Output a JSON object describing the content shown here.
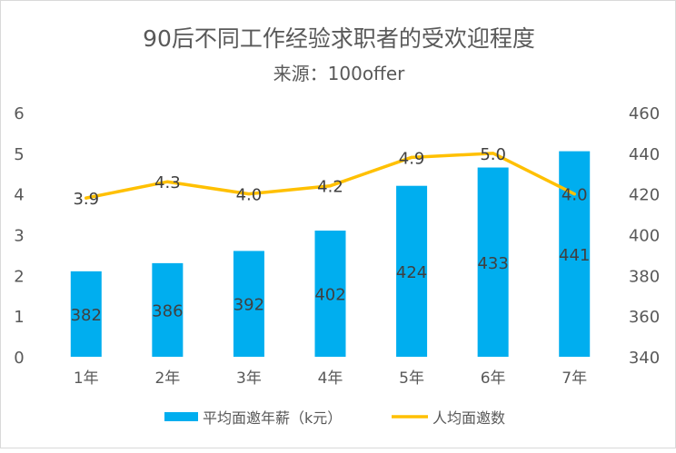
{
  "chart_data": {
    "type": "bar+line",
    "title": "90后不同工作经验求职者的受欢迎程度",
    "subtitle": "来源：100offer",
    "categories": [
      "1年",
      "2年",
      "3年",
      "4年",
      "5年",
      "6年",
      "7年"
    ],
    "series": [
      {
        "name": "平均面邀年薪（k元）",
        "type": "bar",
        "axis": "right",
        "values": [
          382,
          386,
          392,
          402,
          424,
          433,
          441
        ],
        "color": "#00AEEF"
      },
      {
        "name": "人均面邀数",
        "type": "line",
        "axis": "left",
        "values": [
          3.9,
          4.3,
          4.0,
          4.2,
          4.9,
          5.0,
          4.0
        ],
        "value_labels": [
          "3.9",
          "4.3",
          "4.0",
          "4.2",
          "4.9",
          "5.0",
          "4.0"
        ],
        "color": "#FFC000"
      }
    ],
    "left_axis": {
      "min": 0,
      "max": 6,
      "ticks": [
        "0",
        "1",
        "2",
        "3",
        "4",
        "5",
        "6"
      ]
    },
    "right_axis": {
      "min": 340,
      "max": 460,
      "ticks": [
        "340",
        "360",
        "380",
        "400",
        "420",
        "440",
        "460"
      ]
    },
    "legend": {
      "position": "bottom",
      "items": [
        "平均面邀年薪（k元）",
        "人均面邀数"
      ]
    },
    "grid": false
  }
}
